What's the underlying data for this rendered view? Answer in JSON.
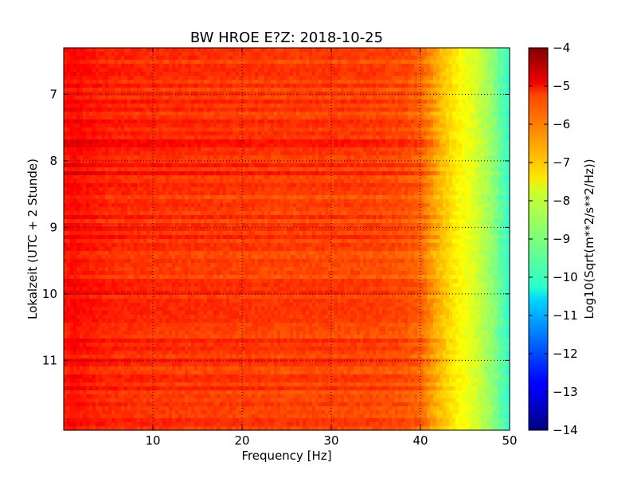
{
  "chart_data": {
    "type": "heatmap",
    "title": "BW HROE E?Z: 2018-10-25",
    "xlabel": "Frequency [Hz]",
    "ylabel": "Lokalzeit (UTC + 2 Stunde)",
    "xlim": [
      0,
      50
    ],
    "ylim": [
      6.3,
      12.05
    ],
    "y_inverted": true,
    "x_ticks": [
      10,
      20,
      30,
      40,
      50
    ],
    "x_tick_labels": [
      "10",
      "20",
      "30",
      "40",
      "50"
    ],
    "y_ticks": [
      7,
      8,
      9,
      10,
      11
    ],
    "y_tick_labels": [
      "7",
      "8",
      "9",
      "10",
      "11"
    ],
    "grid": true,
    "colorbar": {
      "label": "Log10(Sqrt(m**2/s**2/Hz))",
      "colormap": "jet",
      "range": [
        -14,
        -4
      ],
      "ticks": [
        -4,
        -5,
        -6,
        -7,
        -8,
        -9,
        -10,
        -11,
        -12,
        -13,
        -14
      ],
      "tick_labels": [
        "−4",
        "−5",
        "−6",
        "−7",
        "−8",
        "−9",
        "−10",
        "−11",
        "−12",
        "−13",
        "−14"
      ]
    },
    "profile": {
      "frequency_hz": [
        0,
        1,
        2,
        5,
        10,
        15,
        20,
        25,
        30,
        35,
        38,
        40,
        42,
        44,
        46,
        48,
        50
      ],
      "level": [
        -5.5,
        -5.3,
        -5.4,
        -5.6,
        -5.7,
        -5.75,
        -5.8,
        -5.85,
        -5.85,
        -5.9,
        -6.0,
        -6.2,
        -7.0,
        -7.6,
        -8.1,
        -8.8,
        -9.8
      ]
    }
  }
}
